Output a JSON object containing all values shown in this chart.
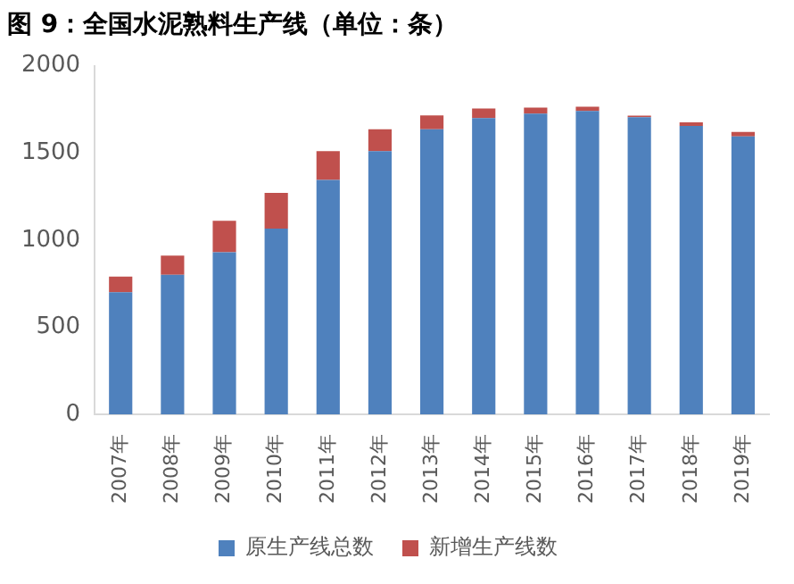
{
  "chart_data": {
    "type": "bar",
    "title": "图 9：全国水泥熟料生产线（单位：条）",
    "categories": [
      "2007年",
      "2008年",
      "2009年",
      "2010年",
      "2011年",
      "2012年",
      "2013年",
      "2014年",
      "2015年",
      "2016年",
      "2017年",
      "2018年",
      "2019年"
    ],
    "stacked": true,
    "series": [
      {
        "name": "原生产线总数",
        "color": "#4f81bd",
        "values": [
          700,
          800,
          930,
          1065,
          1345,
          1510,
          1635,
          1700,
          1725,
          1740,
          1705,
          1655,
          1595
        ]
      },
      {
        "name": "新增生产线数",
        "color": "#c0504d",
        "values": [
          90,
          110,
          180,
          205,
          165,
          125,
          80,
          55,
          35,
          25,
          8,
          20,
          25
        ]
      }
    ],
    "ylim": [
      0,
      2000
    ],
    "yticks": [
      0,
      500,
      1000,
      1500,
      2000
    ],
    "grid": false,
    "legend": "bottom"
  }
}
